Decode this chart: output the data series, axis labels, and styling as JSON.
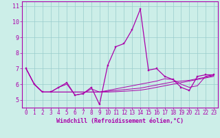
{
  "xlabel": "Windchill (Refroidissement éolien,°C)",
  "hours": [
    0,
    1,
    2,
    3,
    4,
    5,
    6,
    7,
    8,
    9,
    10,
    11,
    12,
    13,
    14,
    15,
    16,
    17,
    18,
    19,
    20,
    21,
    22,
    23
  ],
  "line_main": [
    7.0,
    6.0,
    5.5,
    5.5,
    5.8,
    6.1,
    5.3,
    5.4,
    5.8,
    4.7,
    7.2,
    8.4,
    8.6,
    9.5,
    10.8,
    6.9,
    7.0,
    6.5,
    6.3,
    5.8,
    5.6,
    6.5,
    6.6,
    6.6
  ],
  "line2": [
    7.0,
    6.0,
    5.5,
    5.5,
    5.8,
    6.0,
    5.3,
    5.4,
    5.7,
    5.5,
    5.6,
    5.7,
    5.8,
    5.9,
    6.0,
    6.1,
    6.2,
    6.35,
    6.3,
    6.0,
    5.8,
    5.9,
    6.5,
    6.6
  ],
  "line3": [
    7.0,
    6.0,
    5.5,
    5.5,
    5.5,
    5.5,
    5.5,
    5.5,
    5.5,
    5.5,
    5.55,
    5.6,
    5.65,
    5.7,
    5.75,
    5.85,
    5.95,
    6.05,
    6.15,
    6.2,
    6.25,
    6.35,
    6.45,
    6.55
  ],
  "line4": [
    7.0,
    6.0,
    5.5,
    5.5,
    5.5,
    5.5,
    5.5,
    5.5,
    5.5,
    5.5,
    5.5,
    5.52,
    5.55,
    5.58,
    5.62,
    5.7,
    5.8,
    5.9,
    6.0,
    6.1,
    6.2,
    6.3,
    6.4,
    6.5
  ],
  "ylim": [
    4.5,
    11.3
  ],
  "yticks": [
    5,
    6,
    7,
    8,
    9,
    10,
    11
  ],
  "xticks": [
    0,
    1,
    2,
    3,
    4,
    5,
    6,
    7,
    8,
    9,
    10,
    11,
    12,
    13,
    14,
    15,
    16,
    17,
    18,
    19,
    20,
    21,
    22,
    23
  ],
  "line_color": "#aa00aa",
  "bg_color": "#cceee8",
  "grid_color": "#99cccc",
  "tick_fontsize": 5.5,
  "xlabel_fontsize": 6.0
}
